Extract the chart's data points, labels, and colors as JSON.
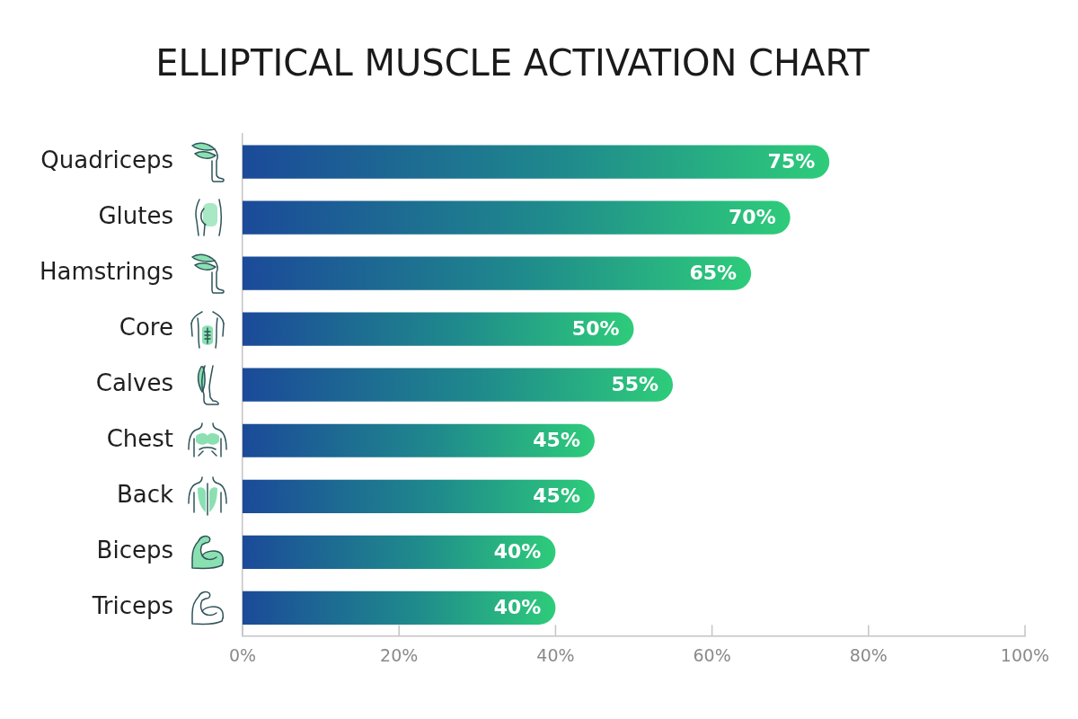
{
  "chart_data": {
    "type": "bar",
    "title": "ELLIPTICAL MUSCLE ACTIVATION CHART",
    "categories": [
      "Quadriceps",
      "Glutes",
      "Hamstrings",
      "Core",
      "Calves",
      "Chest",
      "Back",
      "Biceps",
      "Triceps"
    ],
    "values": [
      75,
      70,
      65,
      50,
      55,
      45,
      45,
      40,
      40
    ],
    "value_labels": [
      "75%",
      "70%",
      "65%",
      "50%",
      "55%",
      "45%",
      "45%",
      "40%",
      "40%"
    ],
    "color": "#2ecc7a",
    "orientation": "horizontal",
    "xlim": [
      0,
      100
    ],
    "xticks": [
      {
        "value": 0,
        "label": "0%"
      },
      {
        "value": 20,
        "label": "20%"
      },
      {
        "value": 40,
        "label": "40%"
      },
      {
        "value": 60,
        "label": "60%"
      },
      {
        "value": 80,
        "label": "80%"
      },
      {
        "value": 100,
        "label": "100%"
      }
    ]
  }
}
